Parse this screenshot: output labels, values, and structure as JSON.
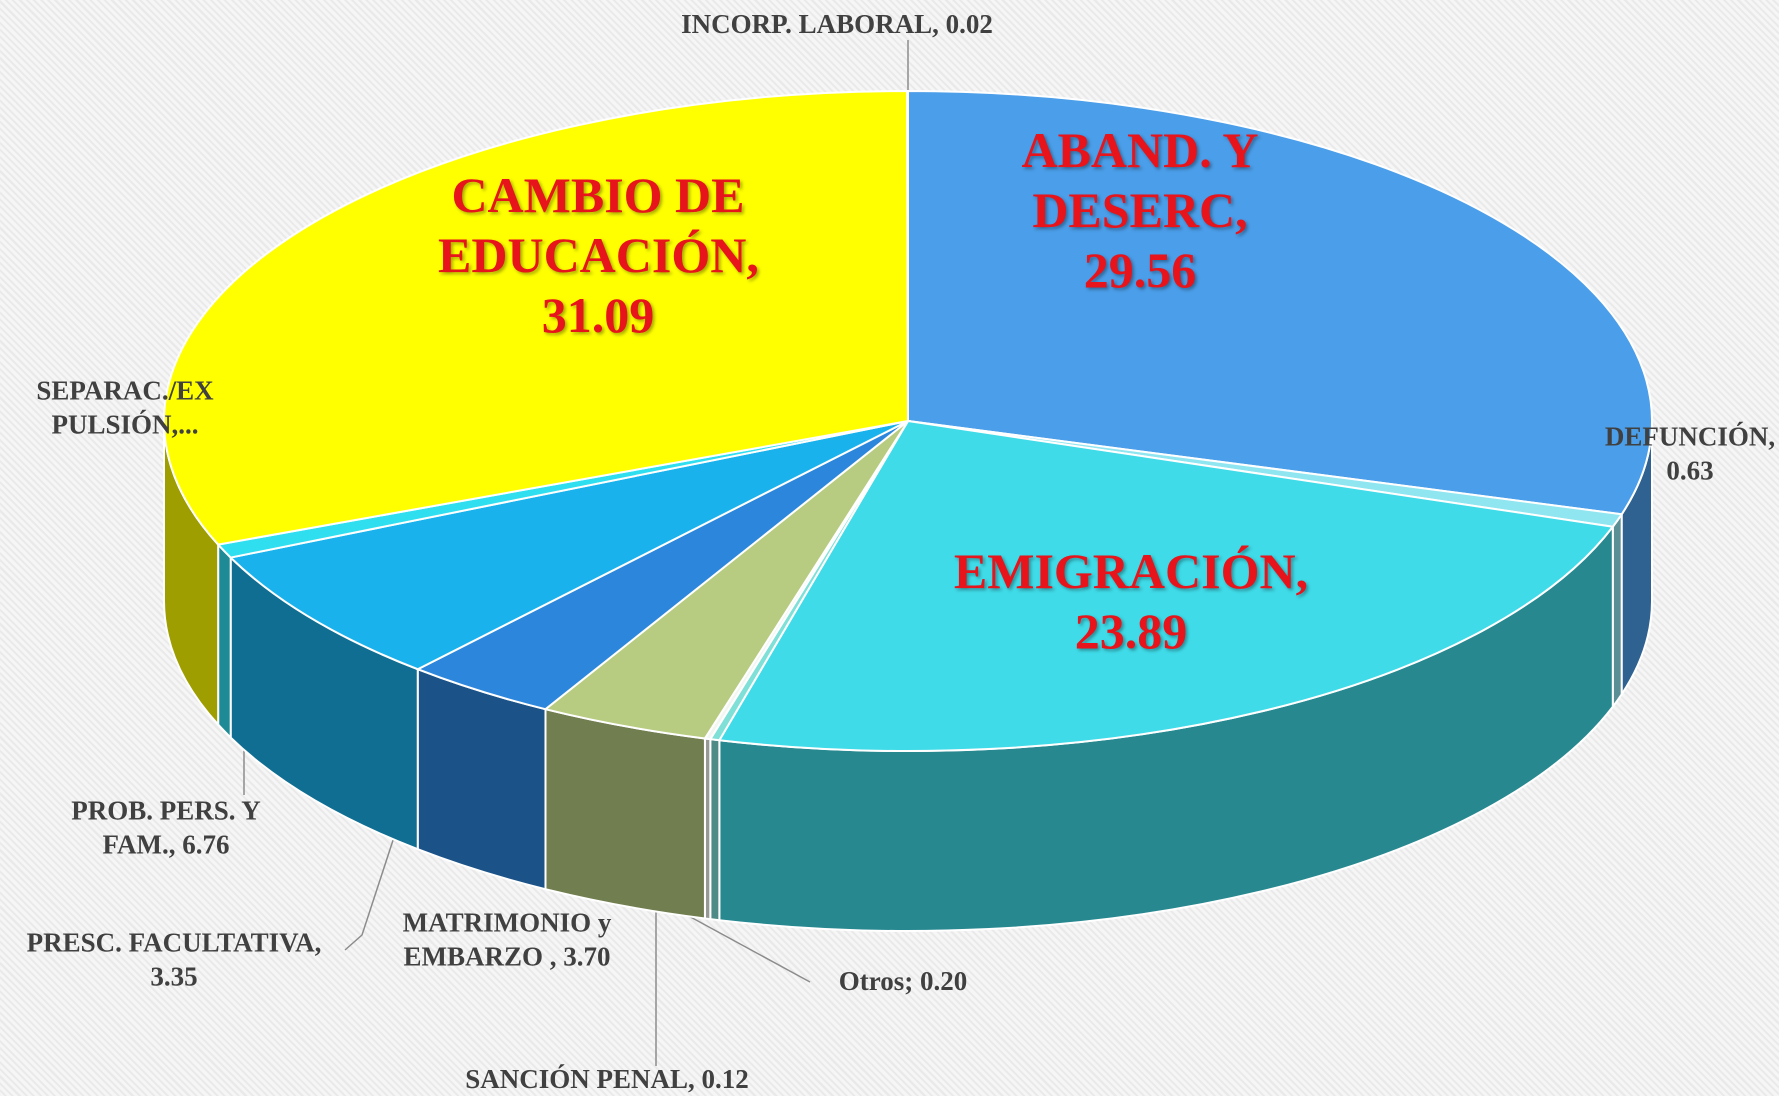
{
  "chart_data": {
    "type": "pie3d",
    "labels": [
      "ABAND. Y DESERC, 29.56",
      "DEFUNCIÓN, 0.63",
      "EMIGRACIÓN, 23.89",
      "Otros; 0.20",
      "SANCIÓN PENAL, 0.12",
      "MATRIMONIO y EMBARZO , 3.70",
      "PRESC. FACULTATIVA, 3.35",
      "PROB. PERS. Y FAM., 6.76",
      "SEPARAC./EX PULSIÓN,...",
      "CAMBIO DE EDUCACIÓN, 31.09",
      "INCORP. LABORAL, 0.02"
    ],
    "values": [
      29.56,
      0.63,
      23.89,
      0.2,
      0.12,
      3.7,
      3.35,
      6.76,
      0.68,
      31.09,
      0.02
    ],
    "colors": [
      "#4b9ee9",
      "#8fe6f0",
      "#3fdbe8",
      "#7fe0d8",
      "#f2f7f2",
      "#b7cc80",
      "#2c86dc",
      "#1ab2ec",
      "#2fdff0",
      "#ffff00",
      "#9aa6b0"
    ]
  }
}
